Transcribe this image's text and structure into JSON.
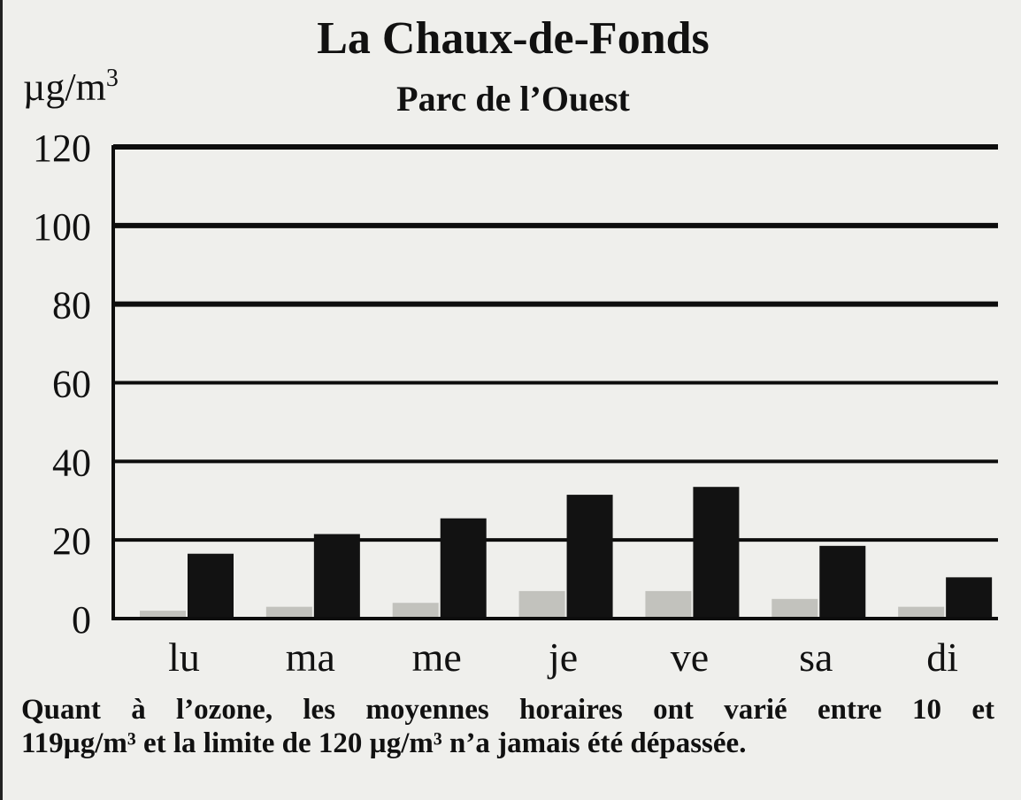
{
  "chart_data": {
    "type": "bar",
    "title": "La Chaux-de-Fonds",
    "subtitle": "Parc de l’Ouest",
    "ylabel": "µg/m³",
    "xlabel": "",
    "categories": [
      "lu",
      "ma",
      "me",
      "je",
      "ve",
      "sa",
      "di"
    ],
    "series": [
      {
        "values": [
          2,
          3,
          4,
          7,
          7,
          5,
          3
        ]
      },
      {
        "values": [
          16.5,
          21.5,
          25.5,
          31.5,
          33.5,
          18.5,
          10.5
        ]
      }
    ],
    "ylim": [
      0,
      120
    ],
    "yticks": [
      "0",
      "20",
      "40",
      "60",
      "80",
      "100",
      "120"
    ],
    "grid": true
  },
  "caption": {
    "line1": "Quant à l’ozone, les moyennes horaires ont varié entre 10 et",
    "line2": "119µg/m³ et la limite de 120 µg/m³ n’a jamais été dépassée."
  },
  "colors": {
    "series_light": "#c2c2bd",
    "series_dark": "#121212",
    "gridline": "#0d0d0d",
    "background": "#efefec"
  }
}
